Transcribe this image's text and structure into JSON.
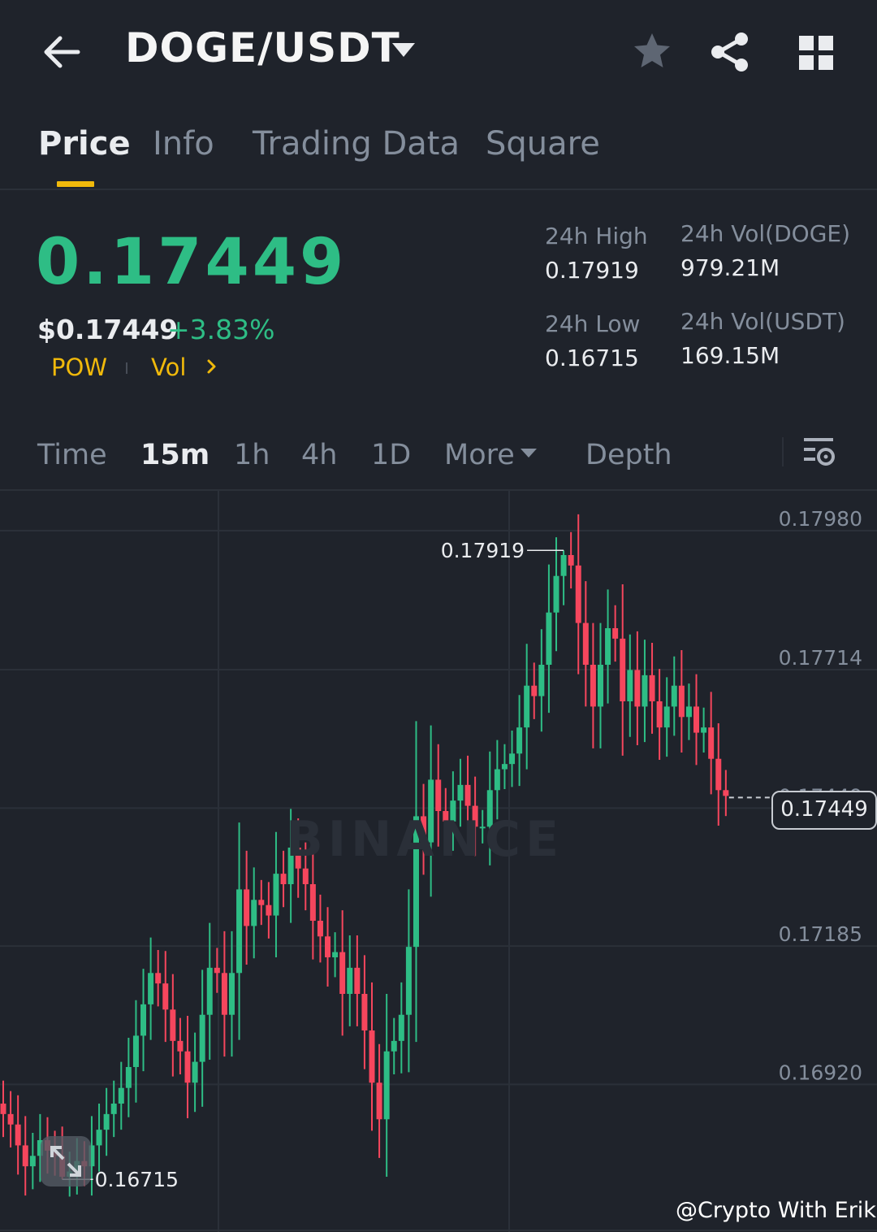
{
  "header": {
    "pair": "DOGE/USDT"
  },
  "tabs": [
    {
      "label": "Price",
      "active": true
    },
    {
      "label": "Info"
    },
    {
      "label": "Trading Data"
    },
    {
      "label": "Square"
    }
  ],
  "ticker": {
    "last_price": "0.17449",
    "usd_price": "$0.17449",
    "change": "+3.83%",
    "tag_1": "POW",
    "tag_2": "Vol"
  },
  "stats": {
    "high_label": "24h High",
    "high_value": "0.17919",
    "low_label": "24h Low",
    "low_value": "0.16715",
    "vol_base_label": "24h Vol(DOGE)",
    "vol_base_value": "979.21M",
    "vol_quote_label": "24h Vol(USDT)",
    "vol_quote_value": "169.15M"
  },
  "timeframes": {
    "items": [
      "Time",
      "15m",
      "1h",
      "4h",
      "1D"
    ],
    "active": "15m",
    "more_label": "More",
    "depth_label": "Depth"
  },
  "colors": {
    "up": "#2ebd85",
    "down": "#f6465d",
    "accent": "#f0b90b",
    "background": "#1f232b"
  },
  "icons": [
    "back-arrow-icon",
    "caret-down-icon",
    "star-icon",
    "share-icon",
    "grid-icon",
    "chevron-right-icon",
    "chart-settings-icon",
    "expand-icon",
    "binance-logo-icon"
  ],
  "watermark": "BINANCE",
  "chart": {
    "current_price_label": "0.17449",
    "high_marker": "0.17919",
    "low_marker": "0.16715",
    "credit": "@Crypto With Erik"
  },
  "chart_data": {
    "type": "candlestick",
    "interval": "15m",
    "y_ticks": [
      0.1798,
      0.17714,
      0.17449,
      0.17185,
      0.1692
    ],
    "y_tick_labels": [
      "0.17980",
      "0.17714",
      "0.17449",
      "0.17185",
      "0.16920"
    ],
    "ylim": [
      0.1661,
      0.1807
    ],
    "grid": true,
    "high": 0.17919,
    "low": 0.16715,
    "last": 0.17449,
    "closes": [
      0.1684,
      0.1682,
      0.1678,
      0.1674,
      0.1676,
      0.1679,
      0.1677,
      0.1676,
      0.1672,
      0.1673,
      0.1675,
      0.1674,
      0.1678,
      0.1681,
      0.1684,
      0.1686,
      0.1689,
      0.1693,
      0.1699,
      0.1705,
      0.1711,
      0.1709,
      0.1704,
      0.1698,
      0.1696,
      0.169,
      0.1694,
      0.1703,
      0.1712,
      0.1711,
      0.1703,
      0.1711,
      0.1727,
      0.172,
      0.1725,
      0.1724,
      0.1722,
      0.173,
      0.1728,
      0.1735,
      0.1731,
      0.1728,
      0.1721,
      0.1718,
      0.1714,
      0.1715,
      0.1707,
      0.1712,
      0.1707,
      0.17,
      0.169,
      0.1683,
      0.1696,
      0.1698,
      0.1703,
      0.1716,
      0.1741,
      0.1736,
      0.1748,
      0.1742,
      0.174,
      0.1744,
      0.1747,
      0.1743,
      0.1739,
      0.1739,
      0.1746,
      0.175,
      0.1751,
      0.1753,
      0.1758,
      0.1766,
      0.1764,
      0.177,
      0.178,
      0.1787,
      0.1791,
      0.1789,
      0.1778,
      0.177,
      0.1762,
      0.177,
      0.1777,
      0.1775,
      0.1763,
      0.1769,
      0.1762,
      0.1768,
      0.1763,
      0.1758,
      0.1762,
      0.1766,
      0.176,
      0.1762,
      0.1757,
      0.1758,
      0.1752,
      0.1746,
      0.17449
    ],
    "opens": [
      0.1686,
      0.1684,
      0.1682,
      0.1678,
      0.1674,
      0.1676,
      0.1679,
      0.1677,
      0.1676,
      0.1672,
      0.1673,
      0.1675,
      0.1674,
      0.1678,
      0.1681,
      0.1684,
      0.1686,
      0.1689,
      0.1693,
      0.1699,
      0.1705,
      0.1711,
      0.1709,
      0.1704,
      0.1698,
      0.1696,
      0.169,
      0.1694,
      0.1703,
      0.1712,
      0.1711,
      0.1703,
      0.1711,
      0.1727,
      0.172,
      0.1725,
      0.1724,
      0.1722,
      0.173,
      0.1728,
      0.1735,
      0.1731,
      0.1728,
      0.1721,
      0.1718,
      0.1714,
      0.1715,
      0.1707,
      0.1712,
      0.1707,
      0.17,
      0.169,
      0.1683,
      0.1696,
      0.1698,
      0.1703,
      0.1716,
      0.1741,
      0.1736,
      0.1748,
      0.1742,
      0.174,
      0.1744,
      0.1747,
      0.1743,
      0.1739,
      0.1739,
      0.1746,
      0.175,
      0.1751,
      0.1753,
      0.1758,
      0.1766,
      0.1764,
      0.177,
      0.178,
      0.1787,
      0.1791,
      0.1789,
      0.1778,
      0.177,
      0.1762,
      0.177,
      0.1777,
      0.1775,
      0.1763,
      0.1769,
      0.1762,
      0.1768,
      0.1763,
      0.1758,
      0.1762,
      0.1766,
      0.176,
      0.1762,
      0.1757,
      0.1758,
      0.1752,
      0.1746
    ]
  }
}
